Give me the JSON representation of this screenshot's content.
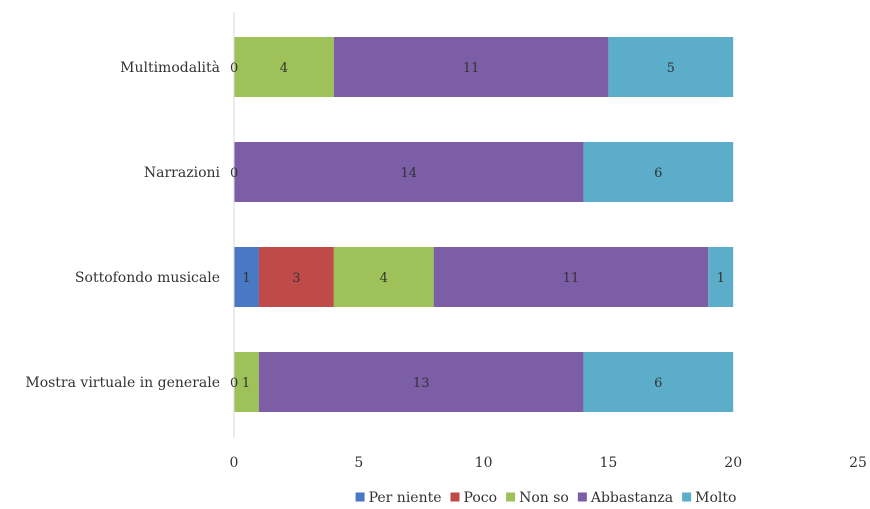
{
  "chart_data": {
    "type": "bar",
    "orientation": "horizontal",
    "stacked": true,
    "categories": [
      "Multimodalità",
      "Narrazioni",
      "Sottofondo musicale",
      "Mostra virtuale in generale"
    ],
    "series": [
      {
        "name": "Per niente",
        "color": "#4a79c4",
        "values": [
          0,
          0,
          1,
          0
        ],
        "labels": [
          "0",
          "0",
          "1",
          "0"
        ]
      },
      {
        "name": "Poco",
        "color": "#bf4b49",
        "values": [
          0,
          0,
          3,
          0
        ],
        "labels": [
          "",
          "",
          "3",
          ""
        ]
      },
      {
        "name": "Non so",
        "color": "#9fc15a",
        "values": [
          4,
          0,
          4,
          1
        ],
        "labels": [
          "4",
          "",
          "4",
          "1"
        ]
      },
      {
        "name": "Abbastanza",
        "color": "#7b5ea6",
        "values": [
          11,
          14,
          11,
          13
        ],
        "labels": [
          "11",
          "14",
          "11",
          "13"
        ]
      },
      {
        "name": "Molto",
        "color": "#5badc9",
        "values": [
          5,
          6,
          1,
          6
        ],
        "labels": [
          "5",
          "6",
          "1",
          "6"
        ]
      }
    ],
    "xlim": [
      0,
      25
    ],
    "xticks": [
      "0",
      "5",
      "10",
      "15",
      "20",
      "25"
    ],
    "grid": false,
    "legend_position": "bottom",
    "title": "",
    "xlabel": "",
    "ylabel": ""
  }
}
